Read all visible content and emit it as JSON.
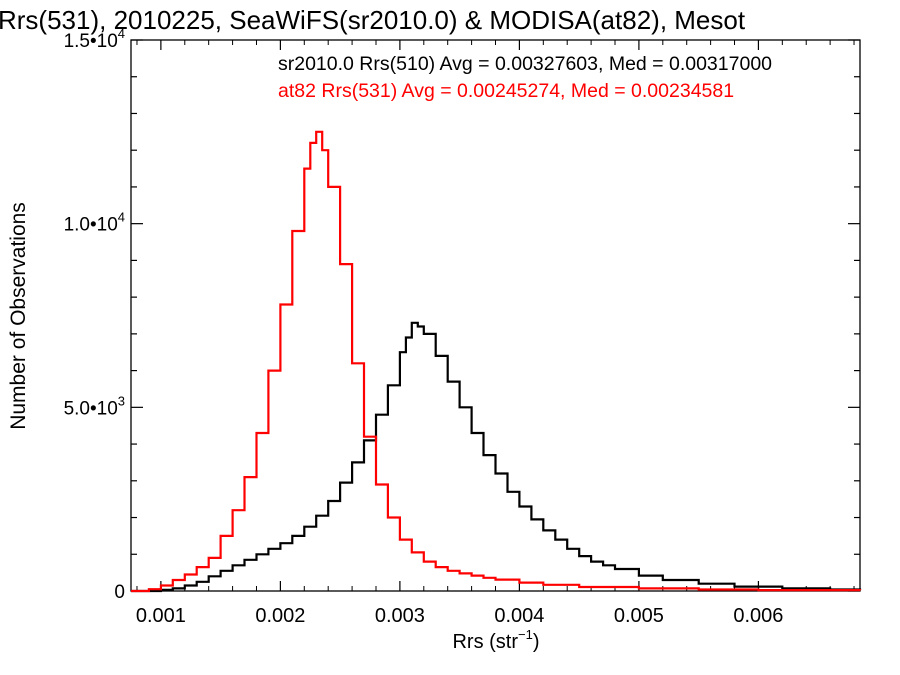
{
  "chart_data": {
    "type": "line",
    "title": "Rrs(531), 2010225, SeaWiFS(sr2010.0) & MODISA(at82), Mesot",
    "xlabel_main": "Rrs (str",
    "xlabel_sup": "−1",
    "xlabel_tail": ")",
    "ylabel": "Number of Observations",
    "xlim": [
      0.00075,
      0.00685
    ],
    "ylim": [
      0,
      15000
    ],
    "x_ticks": [
      {
        "value": 0.001,
        "label": "0.001"
      },
      {
        "value": 0.002,
        "label": "0.002"
      },
      {
        "value": 0.003,
        "label": "0.003"
      },
      {
        "value": 0.004,
        "label": "0.004"
      },
      {
        "value": 0.005,
        "label": "0.005"
      },
      {
        "value": 0.006,
        "label": "0.006"
      }
    ],
    "y_ticks": [
      {
        "value": 0,
        "label": "0"
      },
      {
        "value": 5000,
        "mant": "5.0•10",
        "exp": "3"
      },
      {
        "value": 10000,
        "mant": "1.0•10",
        "exp": "4"
      },
      {
        "value": 15000,
        "mant": "1.5•10",
        "exp": "4"
      }
    ],
    "annotations": [
      {
        "text": "sr2010.0 Rrs(510) Avg = 0.00327603, Med = 0.00317000",
        "color": "#000000"
      },
      {
        "text": "at82 Rrs(531) Avg = 0.00245274, Med = 0.00234581",
        "color": "#ff0000"
      }
    ],
    "series": [
      {
        "color": "#000000",
        "x": [
          0.00075,
          0.001,
          0.0011,
          0.0012,
          0.0013,
          0.0014,
          0.0015,
          0.0016,
          0.0017,
          0.0018,
          0.0019,
          0.002,
          0.0021,
          0.0022,
          0.0023,
          0.0024,
          0.0025,
          0.0026,
          0.0027,
          0.0028,
          0.0029,
          0.003,
          0.00305,
          0.0031,
          0.00315,
          0.0032,
          0.0033,
          0.0034,
          0.0035,
          0.0036,
          0.0037,
          0.0038,
          0.0039,
          0.004,
          0.0041,
          0.0042,
          0.0043,
          0.0044,
          0.0045,
          0.0046,
          0.0047,
          0.0048,
          0.005,
          0.0052,
          0.0055,
          0.0058,
          0.0062,
          0.0066,
          0.00685
        ],
        "y": [
          0,
          30,
          70,
          150,
          250,
          400,
          550,
          700,
          850,
          1000,
          1150,
          1300,
          1500,
          1750,
          2050,
          2450,
          2950,
          3500,
          4100,
          4800,
          5600,
          6500,
          6900,
          7300,
          7200,
          7000,
          6400,
          5700,
          5000,
          4300,
          3700,
          3200,
          2700,
          2300,
          1950,
          1650,
          1400,
          1150,
          950,
          800,
          700,
          600,
          420,
          300,
          200,
          120,
          70,
          40,
          30
        ]
      },
      {
        "color": "#ff0000",
        "x": [
          0.00075,
          0.0009,
          0.001,
          0.0011,
          0.0012,
          0.0013,
          0.0014,
          0.0015,
          0.0016,
          0.0017,
          0.0018,
          0.0019,
          0.002,
          0.0021,
          0.0022,
          0.00225,
          0.0023,
          0.00235,
          0.0024,
          0.0025,
          0.0026,
          0.0027,
          0.0028,
          0.0029,
          0.003,
          0.0031,
          0.0032,
          0.0033,
          0.0034,
          0.0035,
          0.0036,
          0.0037,
          0.0038,
          0.004,
          0.0042,
          0.0045,
          0.005,
          0.0055,
          0.006,
          0.00685
        ],
        "y": [
          0,
          50,
          150,
          300,
          450,
          650,
          900,
          1500,
          2200,
          3100,
          4300,
          6000,
          7800,
          9800,
          11500,
          12200,
          12500,
          12000,
          11000,
          8900,
          6200,
          4200,
          2900,
          2000,
          1400,
          1050,
          800,
          650,
          550,
          480,
          420,
          360,
          310,
          230,
          170,
          110,
          70,
          40,
          25,
          15
        ]
      }
    ]
  }
}
